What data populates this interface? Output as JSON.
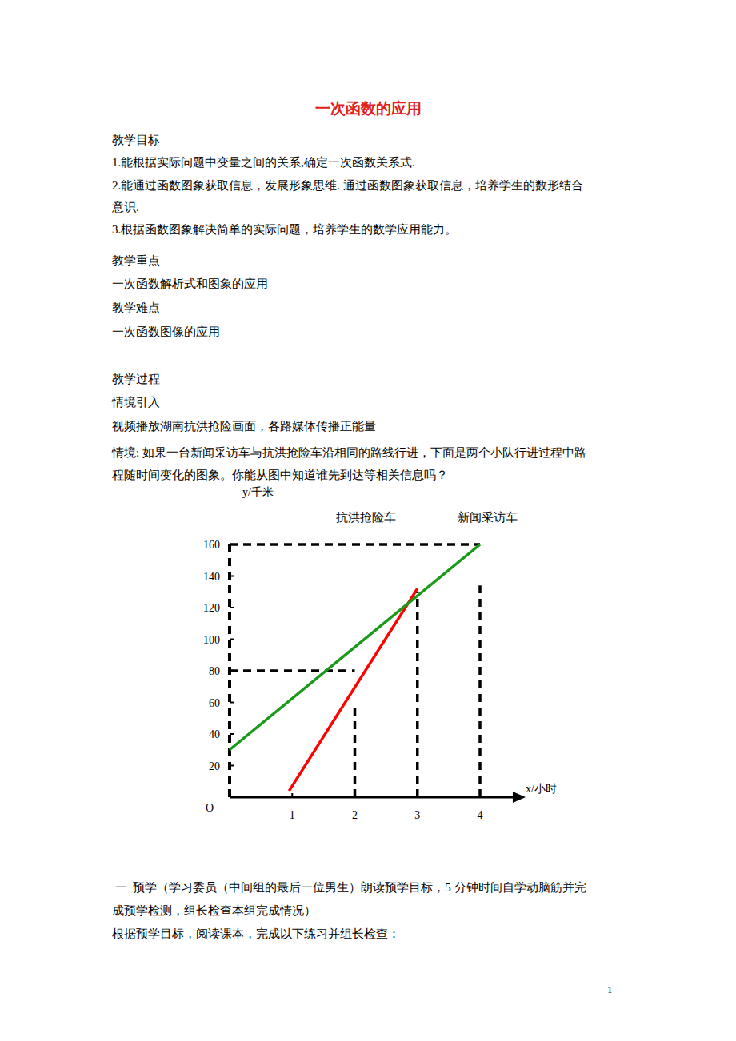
{
  "header": {
    "title": "一次函数的应用"
  },
  "body_before": [
    "教学目标",
    "1.能根据实际问题中变量之间的关系,确定一次函数关系式.",
    "2.能通过函数图象获取信息，发展形象思维. 通过函数图象获取信息，培养学生的数形结合",
    "意识.",
    "3.根据函数图象解决简单的实际问题，培养学生的数学应用能力。",
    "教学重点",
    "一次函数解析式和图象的应用",
    "教学难点",
    "一次函数图像的应用",
    "教学过程",
    "情境引入",
    "视频播放湖南抗洪抢险画面，各路媒体传播正能量",
    "情境: 如果一台新闻采访车与抗洪抢险车沿相同的路线行进，下面是两个小队行进过程中路",
    "程随时间变化的图象。你能从图中知道谁先到达等相关信息吗？"
  ],
  "chart_data": {
    "type": "line",
    "x_label": "x/小时",
    "y_label": "y/千米",
    "origin_label": "O",
    "xlim": [
      0,
      4.6
    ],
    "ylim": [
      0,
      160
    ],
    "xticks": [
      1,
      2,
      3,
      4
    ],
    "yticks": [
      20,
      40,
      60,
      80,
      100,
      120,
      140,
      160
    ],
    "grid": false,
    "series": [
      {
        "name": "抗洪抢险车",
        "color": "#ff0000",
        "line_style": "solid",
        "x": [
          0.95,
          3
        ],
        "values": [
          4,
          132
        ]
      },
      {
        "name": "新闻采访车",
        "color": "#1a9a1a",
        "line_style": "solid",
        "x": [
          0,
          4
        ],
        "values": [
          30,
          160
        ]
      }
    ],
    "reference_lines": [
      {
        "line_style": "dashed",
        "x": [
          0,
          4
        ],
        "values": [
          160,
          160
        ]
      },
      {
        "line_style": "dashed",
        "x": [
          0,
          2
        ],
        "values": [
          80,
          80
        ]
      },
      {
        "line_style": "dashed",
        "x": [
          2,
          2
        ],
        "values": [
          0,
          60
        ]
      },
      {
        "line_style": "dashed",
        "x": [
          3,
          3
        ],
        "values": [
          0,
          130
        ]
      },
      {
        "line_style": "dashed",
        "x": [
          4,
          4
        ],
        "values": [
          0,
          134
        ]
      }
    ]
  },
  "body_after": [
    " 一  预学（学习委员（中间组的最后一位男生）朗读预学目标，5 分钟时间自学动脑筋并完",
    "成预学检测，组长检查本组完成情况）",
    "根据预学目标，阅读课本，完成以下练习并组长检查："
  ],
  "footer": {
    "page_number": "1"
  }
}
